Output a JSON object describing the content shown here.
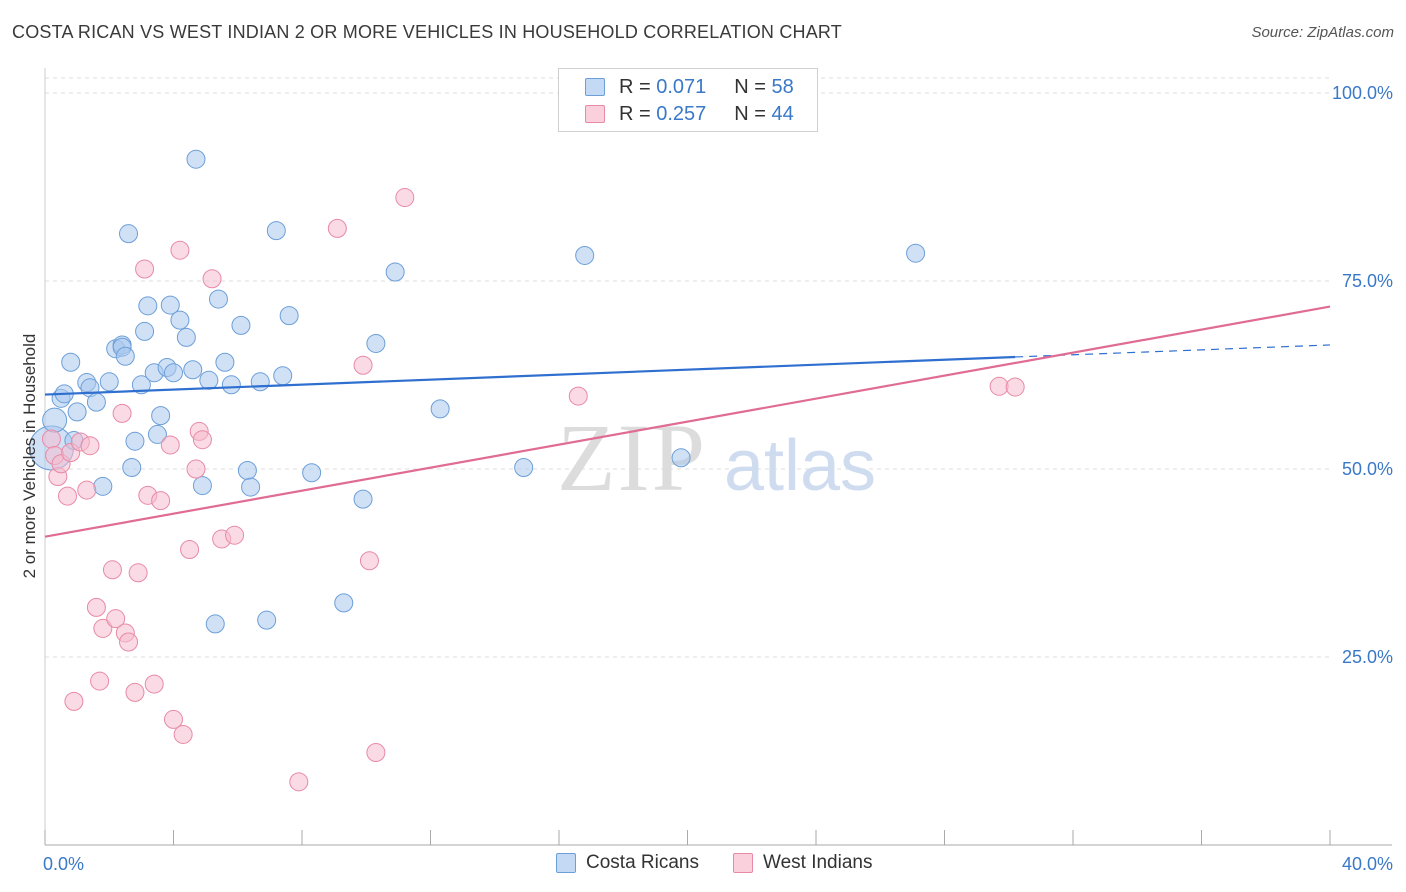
{
  "title": "COSTA RICAN VS WEST INDIAN 2 OR MORE VEHICLES IN HOUSEHOLD CORRELATION CHART",
  "source": "Source: ZipAtlas.com",
  "colors": {
    "blue_fill": "#a9c8ee",
    "blue_stroke": "#6c9fd8",
    "blue_line": "#2f6fcf",
    "pink_fill": "#f6bccd",
    "pink_stroke": "#e88aa6",
    "pink_line": "#e06b94",
    "axis_label": "#3a78c8",
    "grid": "#dddddd"
  },
  "legend": {
    "rows": [
      {
        "r_label": "R =",
        "r_value": "0.071",
        "n_label": "N =",
        "n_value": "58"
      },
      {
        "r_label": "R =",
        "r_value": "0.257",
        "n_label": "N =",
        "n_value": "44"
      }
    ]
  },
  "bottom_legend": {
    "costa": "Costa Ricans",
    "west": "West Indians"
  },
  "watermark": {
    "zip": "ZIP",
    "atlas": "atlas"
  },
  "chart_data": {
    "type": "scatter",
    "xlabel": "",
    "ylabel": "2 or more Vehicles in Household",
    "xlim": [
      0,
      40
    ],
    "ylim": [
      0,
      102
    ],
    "x_tick_labels": [
      {
        "v": 0,
        "t": "0.0%"
      },
      {
        "v": 40,
        "t": "40.0%"
      }
    ],
    "y_tick_labels": [
      {
        "v": 100,
        "t": "100.0%"
      },
      {
        "v": 75,
        "t": "75.0%"
      },
      {
        "v": 50,
        "t": "50.0%"
      },
      {
        "v": 25,
        "t": "25.0%"
      }
    ],
    "x_minor_ticks": [
      0,
      4,
      8,
      12,
      16,
      20,
      24,
      28,
      32,
      36,
      40
    ],
    "series": [
      {
        "name": "Costa Ricans",
        "r": 0.071,
        "n": 58,
        "trend": {
          "x0": 0,
          "y0": 59.9,
          "x1": 30.2,
          "y1": 64.9,
          "dash_x1": 40,
          "dash_y1": 66.5
        },
        "points": [
          [
            0.2,
            52.8,
            22
          ],
          [
            0.3,
            56.5,
            12
          ],
          [
            0.5,
            59.4,
            9
          ],
          [
            0.6,
            60.0,
            9
          ],
          [
            0.8,
            64.2,
            9
          ],
          [
            0.9,
            53.8,
            9
          ],
          [
            1.0,
            57.6,
            9
          ],
          [
            1.3,
            61.5,
            9
          ],
          [
            1.4,
            60.8,
            9
          ],
          [
            1.6,
            58.9,
            9
          ],
          [
            1.8,
            47.7,
            9
          ],
          [
            2.0,
            61.6,
            9
          ],
          [
            2.2,
            66.0,
            9
          ],
          [
            2.4,
            66.5,
            9
          ],
          [
            2.4,
            66.2,
            9
          ],
          [
            2.5,
            65.0,
            9
          ],
          [
            2.6,
            81.3,
            9
          ],
          [
            2.7,
            50.2,
            9
          ],
          [
            2.8,
            53.7,
            9
          ],
          [
            3.0,
            61.2,
            9
          ],
          [
            3.1,
            68.3,
            9
          ],
          [
            3.2,
            71.7,
            9
          ],
          [
            3.4,
            62.8,
            9
          ],
          [
            3.5,
            54.6,
            9
          ],
          [
            3.6,
            57.1,
            9
          ],
          [
            3.8,
            63.5,
            9
          ],
          [
            3.9,
            71.8,
            9
          ],
          [
            4.0,
            62.8,
            9
          ],
          [
            4.2,
            69.8,
            9
          ],
          [
            4.4,
            67.5,
            9
          ],
          [
            4.6,
            63.2,
            9
          ],
          [
            4.7,
            91.2,
            9
          ],
          [
            4.9,
            47.8,
            9
          ],
          [
            5.1,
            61.8,
            9
          ],
          [
            5.3,
            29.4,
            9
          ],
          [
            5.4,
            72.6,
            9
          ],
          [
            5.6,
            64.2,
            9
          ],
          [
            5.8,
            61.2,
            9
          ],
          [
            6.1,
            69.1,
            9
          ],
          [
            6.3,
            49.8,
            9
          ],
          [
            6.4,
            47.6,
            9
          ],
          [
            6.7,
            61.6,
            9
          ],
          [
            6.9,
            29.9,
            9
          ],
          [
            7.2,
            81.7,
            9
          ],
          [
            7.4,
            62.4,
            9
          ],
          [
            7.6,
            70.4,
            9
          ],
          [
            8.3,
            49.5,
            9
          ],
          [
            9.3,
            32.2,
            9
          ],
          [
            9.9,
            46.0,
            9
          ],
          [
            10.3,
            66.7,
            9
          ],
          [
            10.9,
            76.2,
            9
          ],
          [
            12.3,
            58.0,
            9
          ],
          [
            14.9,
            50.2,
            9
          ],
          [
            16.8,
            78.4,
            9
          ],
          [
            19.8,
            51.5,
            9
          ],
          [
            27.1,
            78.7,
            9
          ]
        ]
      },
      {
        "name": "West Indians",
        "r": 0.257,
        "n": 44,
        "trend": {
          "x0": 0,
          "y0": 41.0,
          "x1": 40,
          "y1": 71.6
        },
        "points": [
          [
            0.2,
            54.0,
            9
          ],
          [
            0.3,
            51.8,
            9
          ],
          [
            0.4,
            49.0,
            9
          ],
          [
            0.5,
            50.7,
            9
          ],
          [
            0.7,
            46.4,
            9
          ],
          [
            0.8,
            52.2,
            9
          ],
          [
            0.9,
            19.1,
            9
          ],
          [
            1.1,
            53.6,
            9
          ],
          [
            1.3,
            47.2,
            9
          ],
          [
            1.4,
            53.1,
            9
          ],
          [
            1.6,
            31.6,
            9
          ],
          [
            1.7,
            21.8,
            9
          ],
          [
            1.8,
            28.8,
            9
          ],
          [
            2.1,
            36.6,
            9
          ],
          [
            2.2,
            30.1,
            9
          ],
          [
            2.4,
            57.4,
            9
          ],
          [
            2.5,
            28.2,
            9
          ],
          [
            2.6,
            27.0,
            9
          ],
          [
            2.8,
            20.3,
            9
          ],
          [
            2.9,
            36.2,
            9
          ],
          [
            3.1,
            76.6,
            9
          ],
          [
            3.2,
            46.5,
            9
          ],
          [
            3.4,
            21.4,
            9
          ],
          [
            3.6,
            45.8,
            9
          ],
          [
            3.9,
            53.2,
            9
          ],
          [
            4.0,
            16.7,
            9
          ],
          [
            4.2,
            79.1,
            9
          ],
          [
            4.3,
            14.7,
            9
          ],
          [
            4.5,
            39.3,
            9
          ],
          [
            4.7,
            50.0,
            9
          ],
          [
            4.8,
            55.0,
            9
          ],
          [
            4.9,
            53.9,
            9
          ],
          [
            5.2,
            75.3,
            9
          ],
          [
            5.5,
            40.7,
            9
          ],
          [
            5.9,
            41.2,
            9
          ],
          [
            7.9,
            8.4,
            9
          ],
          [
            9.1,
            82.0,
            9
          ],
          [
            9.9,
            63.8,
            9
          ],
          [
            10.1,
            37.8,
            9
          ],
          [
            10.3,
            12.3,
            9
          ],
          [
            11.2,
            86.1,
            9
          ],
          [
            16.6,
            59.7,
            9
          ],
          [
            29.7,
            61.0,
            9
          ],
          [
            30.2,
            60.9,
            9
          ]
        ]
      }
    ]
  }
}
